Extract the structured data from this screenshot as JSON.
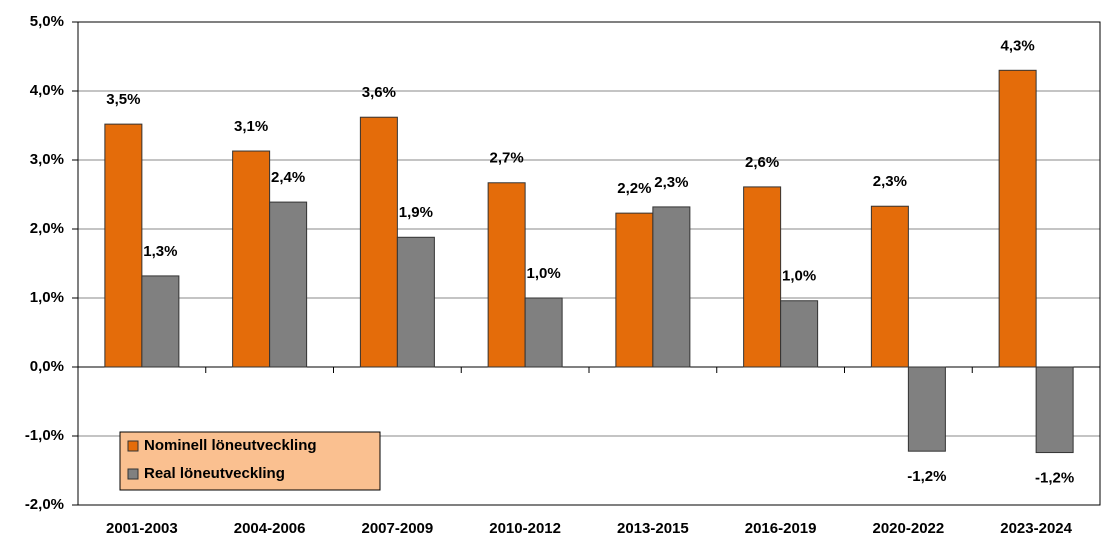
{
  "chart_data": {
    "type": "bar",
    "categories": [
      "2001-2003",
      "2004-2006",
      "2007-2009",
      "2010-2012",
      "2013-2015",
      "2016-2019",
      "2020-2022",
      "2023-2024"
    ],
    "series": [
      {
        "name": "Nominell löneutveckling",
        "color": "#e46c0a",
        "values": [
          3.52,
          3.13,
          3.62,
          2.67,
          2.23,
          2.61,
          2.33,
          4.3
        ],
        "value_labels": [
          "3,5%",
          "3,1%",
          "3,6%",
          "2,7%",
          "2,2%",
          "2,6%",
          "2,3%",
          "4,3%"
        ]
      },
      {
        "name": "Real löneutveckling",
        "color": "#808080",
        "values": [
          1.32,
          2.39,
          1.88,
          1.0,
          2.32,
          0.96,
          -1.22,
          -1.24
        ],
        "value_labels": [
          "1,3%",
          "2,4%",
          "1,9%",
          "1,0%",
          "2,3%",
          "1,0%",
          "-1,2%",
          "-1,2%"
        ]
      }
    ],
    "ylim": [
      -2,
      5
    ],
    "yticks": [
      {
        "value": -2,
        "label": "-2,0%"
      },
      {
        "value": -1,
        "label": "-1,0%"
      },
      {
        "value": 0,
        "label": "0,0%"
      },
      {
        "value": 1,
        "label": "1,0%"
      },
      {
        "value": 2,
        "label": "2,0%"
      },
      {
        "value": 3,
        "label": "3,0%"
      },
      {
        "value": 4,
        "label": "4,0%"
      },
      {
        "value": 5,
        "label": "5,0%"
      }
    ],
    "grid": true,
    "legend": "lower left",
    "legend_color": "#fac090"
  }
}
